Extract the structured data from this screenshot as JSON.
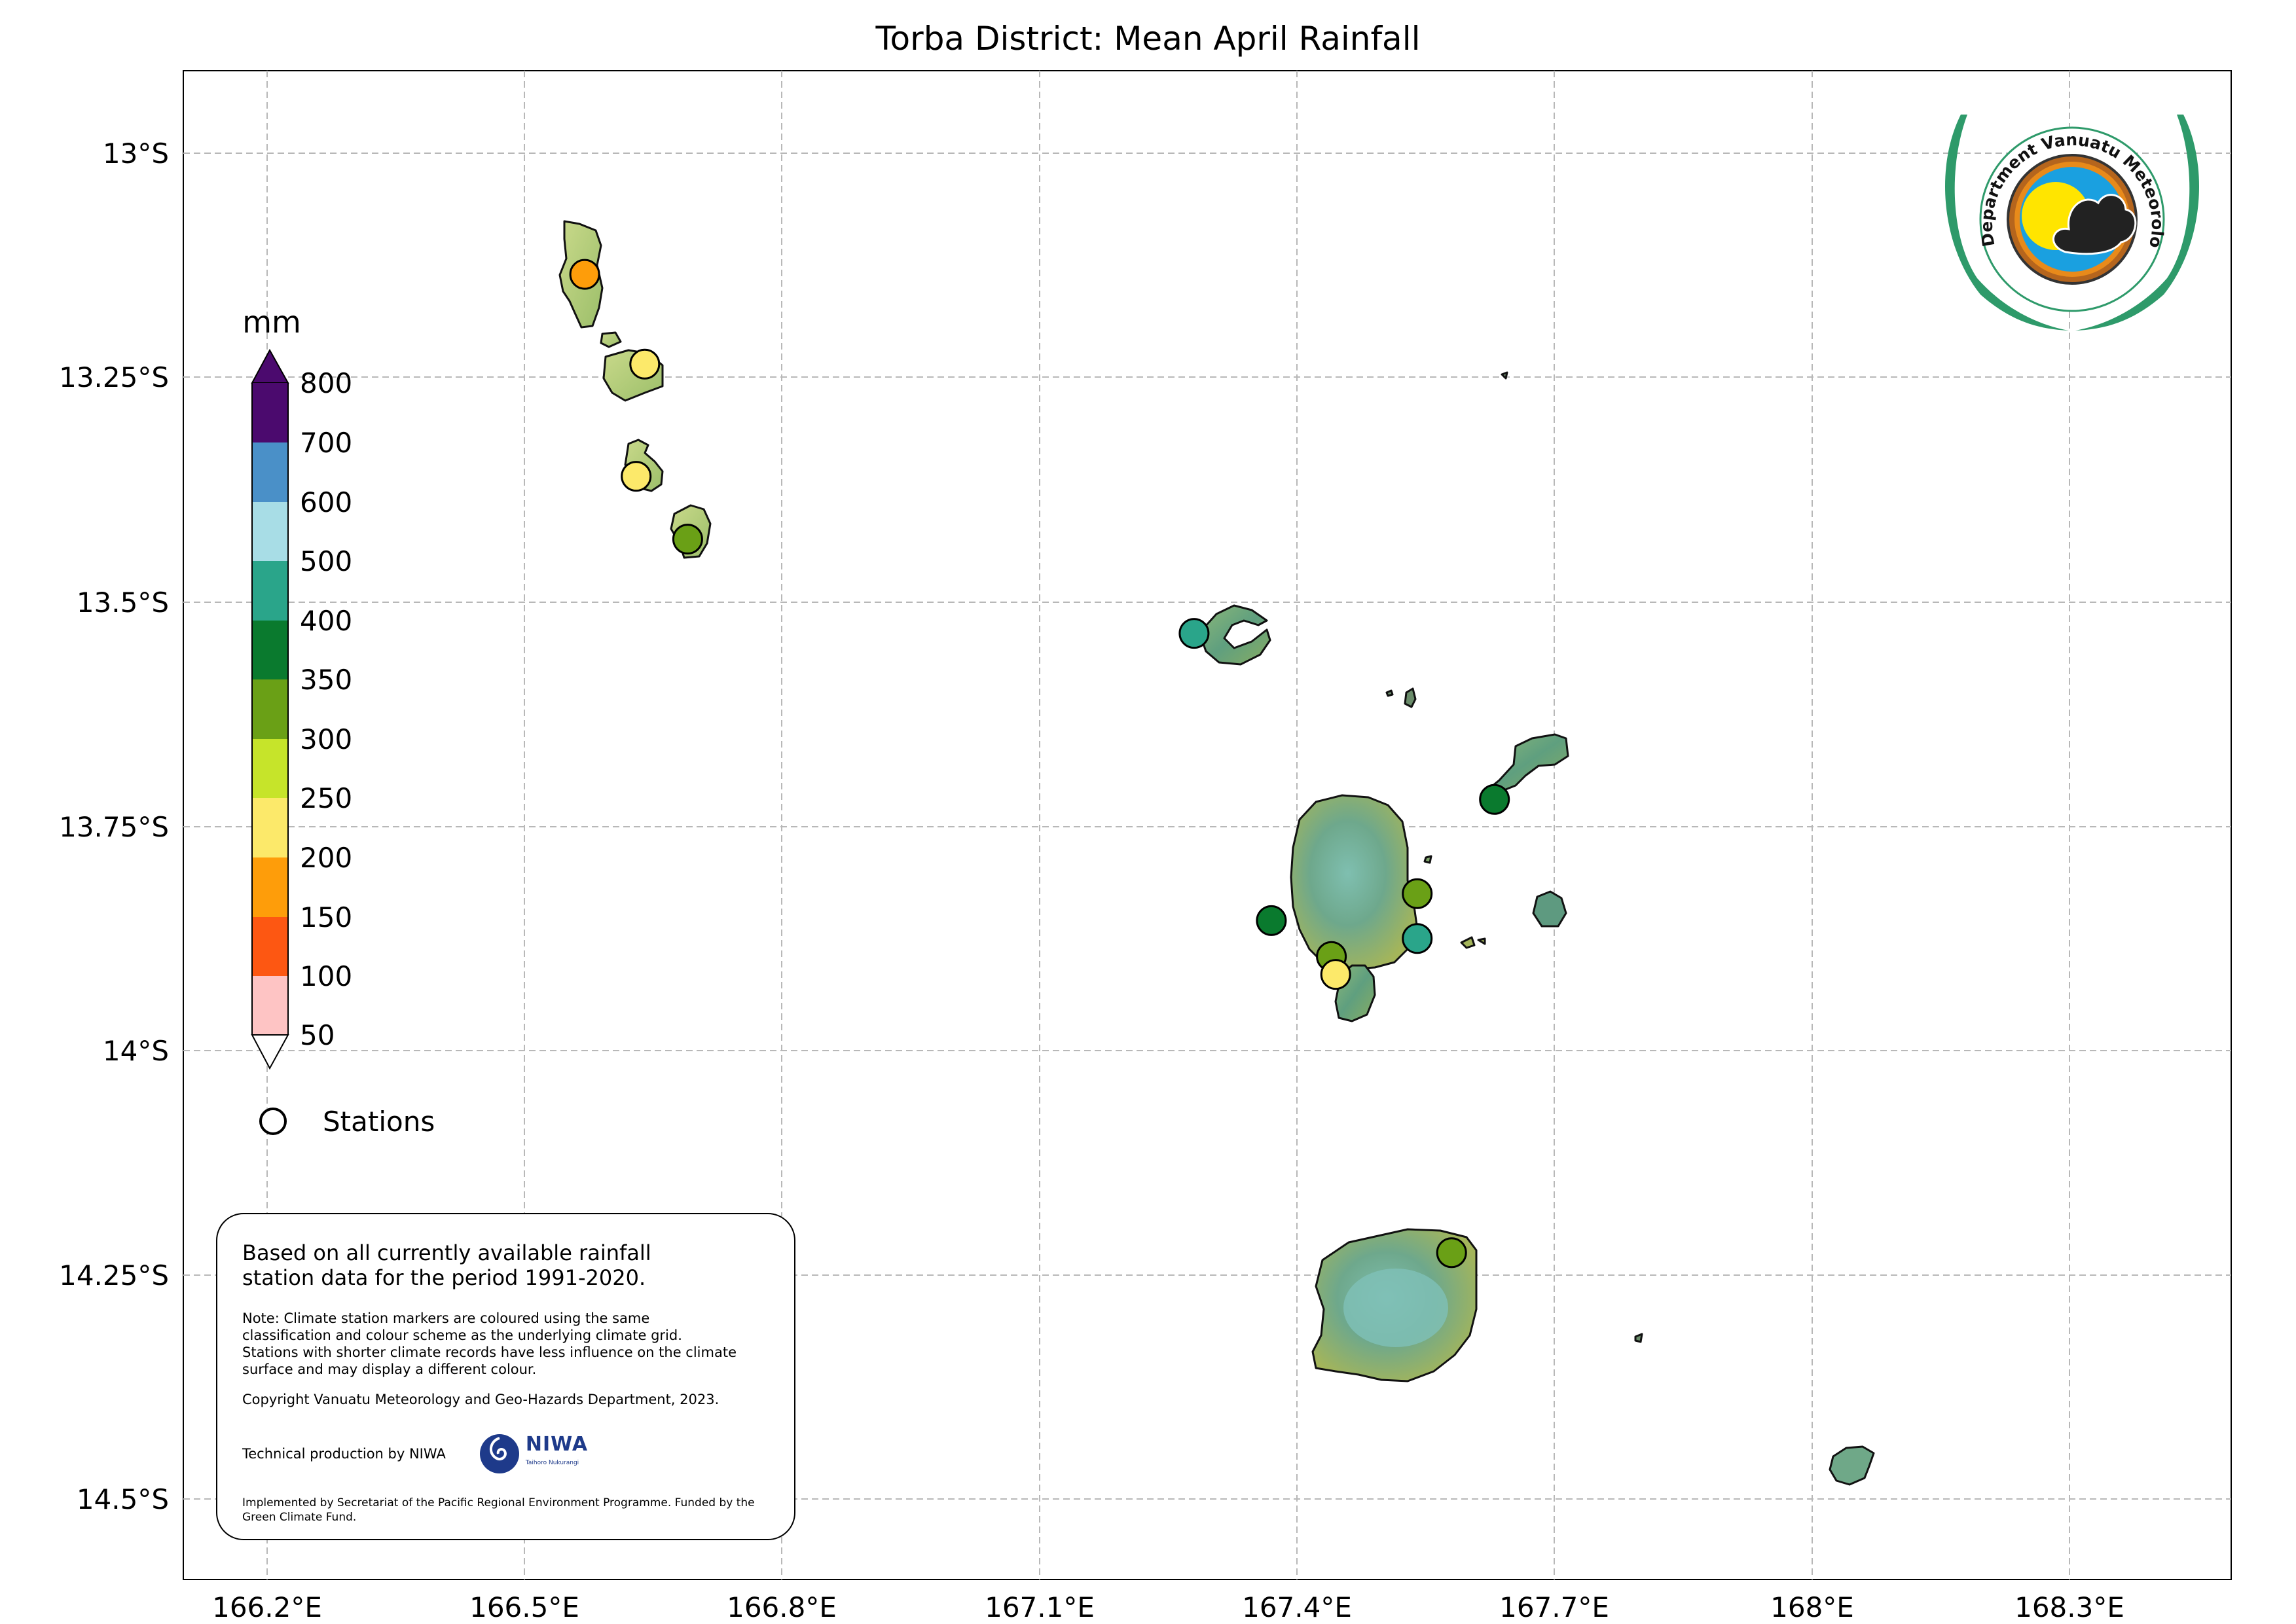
{
  "title": "Torba District: Mean April Rainfall",
  "axes": {
    "x_ticks": [
      "166.2°E",
      "166.5°E",
      "166.8°E",
      "167.1°E",
      "167.4°E",
      "167.7°E",
      "168°E",
      "168.3°E"
    ],
    "y_ticks": [
      "13°S",
      "13.25°S",
      "13.5°S",
      "13.75°S",
      "14°S",
      "14.25°S",
      "14.5°S"
    ],
    "grid": true
  },
  "colorbar": {
    "unit": "mm",
    "levels": [
      "800",
      "700",
      "600",
      "500",
      "400",
      "350",
      "300",
      "250",
      "200",
      "150",
      "100",
      "50"
    ],
    "colors": [
      "#4b0a6e",
      "#4a90c8",
      "#a8dde6",
      "#2aa58a",
      "#0a7a2e",
      "#6aa016",
      "#c6e42a",
      "#fce96a",
      "#fe9d0a",
      "#fd5712",
      "#fec4c4"
    ],
    "extends": "both"
  },
  "legend": {
    "stations_label": "Stations"
  },
  "notes": {
    "main": "Based on all currently available rainfall station data for the period 1991-2020.",
    "note": "Note: Climate station markers are coloured using the same classification and colour scheme as the underlying climate grid. Stations with shorter climate records have less influence on the climate surface and may display a different colour.",
    "copyright": "Copyright Vanuatu Meteorology and Geo-Hazards Department, 2023.",
    "production": "Technical production by NIWA",
    "niwa_logo_text": "NIWA",
    "niwa_logo_subtext": "Taihoro Nukurangi",
    "implemented": "Implemented by Secretariat of the Pacific Regional Environment Programme. Funded by the Green Climate Fund."
  },
  "logo": {
    "text": "Department Vanuatu Meteorology and Geo-Hazards"
  },
  "stations": [
    {
      "lon": 166.57,
      "lat": -13.135,
      "color": "#fe9d0a"
    },
    {
      "lon": 166.64,
      "lat": -13.235,
      "color": "#fce96a"
    },
    {
      "lon": 166.63,
      "lat": -13.36,
      "color": "#fce96a"
    },
    {
      "lon": 166.69,
      "lat": -13.43,
      "color": "#6aa016"
    },
    {
      "lon": 167.28,
      "lat": -13.535,
      "color": "#2aa58a"
    },
    {
      "lon": 167.63,
      "lat": -13.72,
      "color": "#0a7a2e"
    },
    {
      "lon": 167.54,
      "lat": -13.825,
      "color": "#6aa016"
    },
    {
      "lon": 167.37,
      "lat": -13.855,
      "color": "#0a7a2e"
    },
    {
      "lon": 167.54,
      "lat": -13.875,
      "color": "#2aa58a"
    },
    {
      "lon": 167.44,
      "lat": -13.895,
      "color": "#6aa016"
    },
    {
      "lon": 167.445,
      "lat": -13.915,
      "color": "#fce96a"
    },
    {
      "lon": 167.58,
      "lat": -14.225,
      "color": "#6aa016"
    }
  ]
}
